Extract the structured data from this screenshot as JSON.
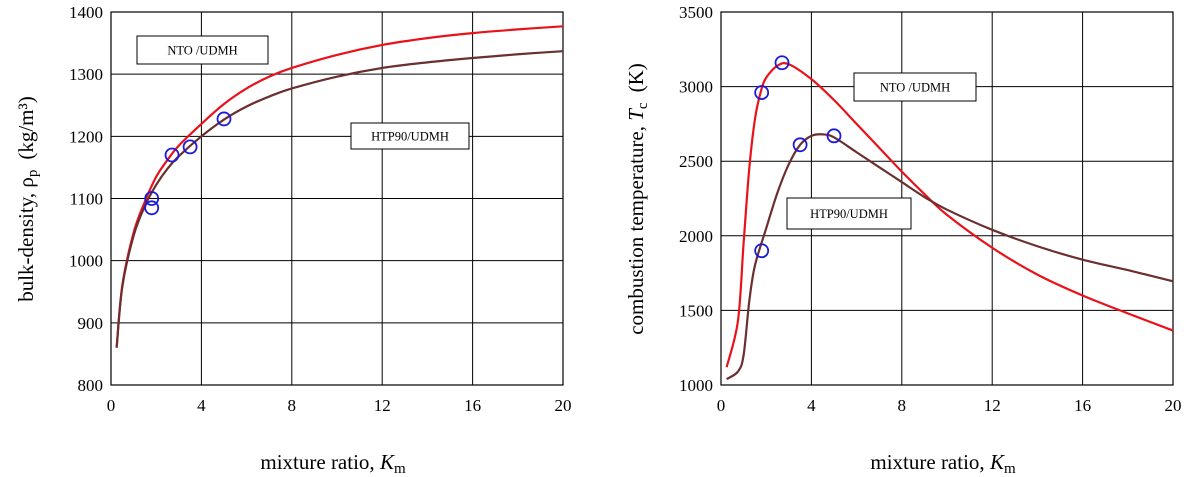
{
  "chart_data": [
    {
      "type": "line",
      "ylabel": {
        "text": "bulk-density, ",
        "symbol": "ρ",
        "sub": "p",
        "unit": "(kg/m³)"
      },
      "xlabel": {
        "text": "mixture ratio, ",
        "symbol": "K",
        "sub": "m"
      },
      "xlim": [
        0,
        20
      ],
      "ylim": [
        800,
        1400
      ],
      "xticks": [
        0,
        4,
        8,
        12,
        16,
        20
      ],
      "yticks": [
        800,
        900,
        1000,
        1100,
        1200,
        1300,
        1400
      ],
      "grid": true,
      "series": [
        {
          "name": "NTO /UDMH",
          "color": "#e8121a",
          "x": [
            0.25,
            0.5,
            1.0,
            1.5,
            2.0,
            2.5,
            3.0,
            4.0,
            5.0,
            6.0,
            7.0,
            8.0,
            10.0,
            12.0,
            14.0,
            16.0,
            18.0,
            20.0
          ],
          "y": [
            860,
            960,
            1045,
            1095,
            1135,
            1162,
            1185,
            1220,
            1252,
            1277,
            1296,
            1310,
            1331,
            1347,
            1358,
            1366,
            1372,
            1377
          ]
        },
        {
          "name": "HTP90/UDMH",
          "color": "#6b2f2f",
          "x": [
            0.25,
            0.5,
            1.0,
            1.5,
            2.0,
            2.5,
            3.0,
            4.0,
            5.0,
            6.0,
            7.0,
            8.0,
            10.0,
            12.0,
            14.0,
            16.0,
            18.0,
            20.0
          ],
          "y": [
            860,
            958,
            1040,
            1088,
            1122,
            1148,
            1168,
            1200,
            1227,
            1248,
            1264,
            1277,
            1296,
            1310,
            1319,
            1326,
            1332,
            1337
          ]
        }
      ],
      "markers": {
        "color": "#1a1ad8",
        "points": [
          [
            1.8,
            1085
          ],
          [
            1.8,
            1100
          ],
          [
            2.7,
            1170
          ],
          [
            3.5,
            1183
          ],
          [
            5.0,
            1228
          ]
        ]
      },
      "legend_boxes": [
        {
          "label": "NTO /UDMH",
          "placement": "top-left"
        },
        {
          "label": "HTP90/UDMH",
          "placement": "middle-right"
        }
      ]
    },
    {
      "type": "line",
      "ylabel": {
        "text": "combustion temperature, ",
        "symbol": "T",
        "sub": "c",
        "unit": "(K)"
      },
      "xlabel": {
        "text": "mixture ratio, ",
        "symbol": "K",
        "sub": "m"
      },
      "xlim": [
        0,
        20
      ],
      "ylim": [
        1000,
        3500
      ],
      "xticks": [
        0,
        4,
        8,
        12,
        16,
        20
      ],
      "yticks": [
        1000,
        1500,
        2000,
        2500,
        3000,
        3500
      ],
      "grid": true,
      "series": [
        {
          "name": "NTO /UDMH",
          "color": "#e8121a",
          "x": [
            0.25,
            0.75,
            1.0,
            1.25,
            1.5,
            1.75,
            2.0,
            2.5,
            3.0,
            4.0,
            5.0,
            6.0,
            7.0,
            8.0,
            9.0,
            10.0,
            12.0,
            14.0,
            16.0,
            18.0,
            20.0
          ],
          "y": [
            1120,
            1430,
            1950,
            2450,
            2780,
            2960,
            3060,
            3140,
            3150,
            3050,
            2910,
            2750,
            2590,
            2430,
            2280,
            2140,
            1920,
            1740,
            1600,
            1480,
            1365
          ]
        },
        {
          "name": "HTP90/UDMH",
          "color": "#6b2f2f",
          "x": [
            0.25,
            0.75,
            1.0,
            1.25,
            1.5,
            2.0,
            2.5,
            3.0,
            3.5,
            4.0,
            4.5,
            5.0,
            6.0,
            7.0,
            8.0,
            9.0,
            10.0,
            12.0,
            14.0,
            16.0,
            18.0,
            20.0
          ],
          "y": [
            1040,
            1090,
            1200,
            1560,
            1800,
            2050,
            2290,
            2480,
            2610,
            2670,
            2680,
            2660,
            2560,
            2460,
            2360,
            2260,
            2175,
            2040,
            1930,
            1840,
            1770,
            1695
          ]
        }
      ],
      "markers": {
        "color": "#1a1ad8",
        "points": [
          [
            1.8,
            1900
          ],
          [
            1.8,
            2960
          ],
          [
            2.7,
            3160
          ],
          [
            3.5,
            2610
          ],
          [
            5.0,
            2670
          ]
        ]
      },
      "legend_boxes": [
        {
          "label": "NTO /UDMH",
          "placement": "upper-right"
        },
        {
          "label": "HTP90/UDMH",
          "placement": "middle"
        }
      ]
    }
  ]
}
